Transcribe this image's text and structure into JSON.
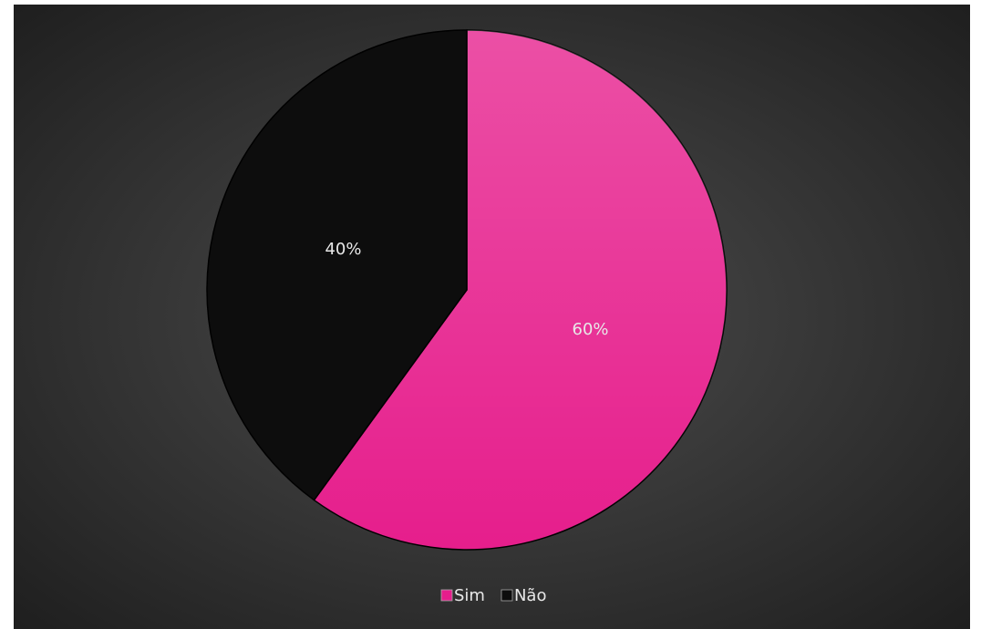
{
  "chart_data": {
    "type": "pie",
    "categories": [
      "Sim",
      "Não"
    ],
    "values": [
      60,
      40
    ],
    "value_labels": [
      "60%",
      "40%"
    ],
    "colors": [
      "#e61e8c",
      "#0d0d0d"
    ],
    "legend": "bottom"
  }
}
